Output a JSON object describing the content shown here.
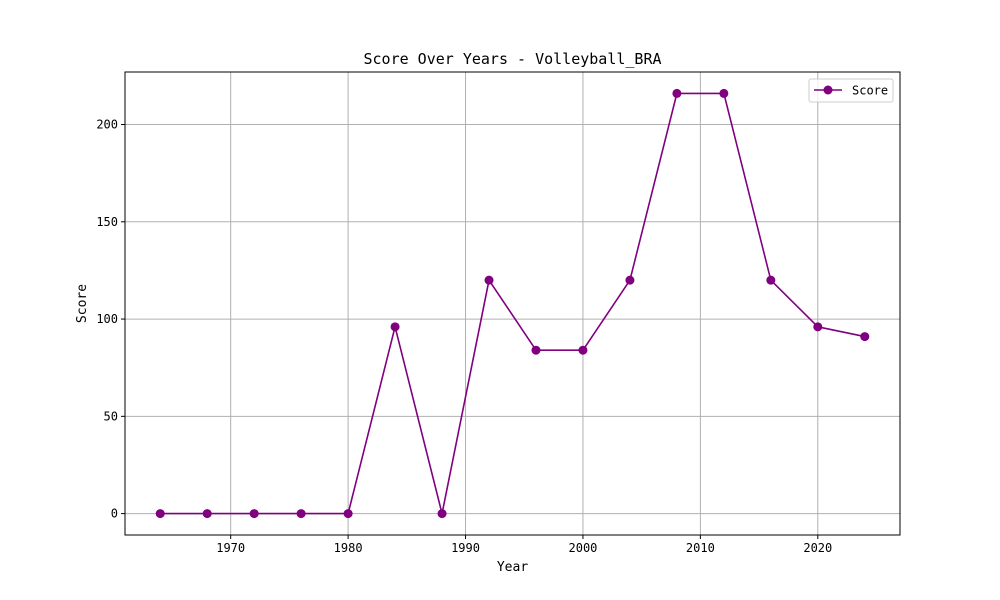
{
  "chart_data": {
    "type": "line",
    "title": "Score Over Years - Volleyball_BRA",
    "xlabel": "Year",
    "ylabel": "Score",
    "xlim": [
      1961,
      2027
    ],
    "ylim": [
      -11,
      227
    ],
    "xticks": [
      1970,
      1980,
      1990,
      2000,
      2010,
      2020
    ],
    "yticks": [
      0,
      50,
      100,
      150,
      200
    ],
    "grid": true,
    "legend_position": "upper right",
    "series": [
      {
        "name": "Score",
        "color": "#800080",
        "marker": "circle",
        "points": [
          {
            "x": 1964,
            "y": 0
          },
          {
            "x": 1968,
            "y": 0
          },
          {
            "x": 1972,
            "y": 0
          },
          {
            "x": 1976,
            "y": 0
          },
          {
            "x": 1980,
            "y": 0
          },
          {
            "x": 1984,
            "y": 96
          },
          {
            "x": 1988,
            "y": 0
          },
          {
            "x": 1992,
            "y": 120
          },
          {
            "x": 1996,
            "y": 84
          },
          {
            "x": 2000,
            "y": 84
          },
          {
            "x": 2004,
            "y": 120
          },
          {
            "x": 2008,
            "y": 216
          },
          {
            "x": 2012,
            "y": 216
          },
          {
            "x": 2016,
            "y": 120
          },
          {
            "x": 2020,
            "y": 96
          },
          {
            "x": 2024,
            "y": 91
          }
        ]
      }
    ]
  }
}
